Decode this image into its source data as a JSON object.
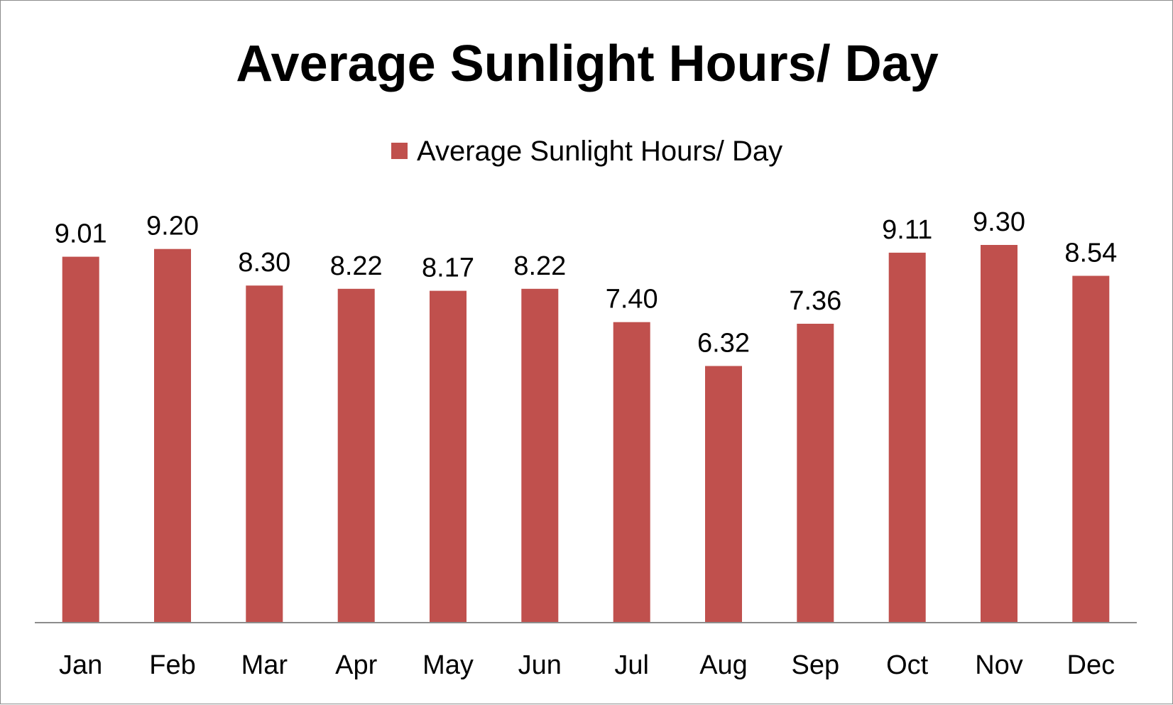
{
  "chart_data": {
    "type": "bar",
    "title": "Average Sunlight Hours/ Day",
    "categories": [
      "Jan",
      "Feb",
      "Mar",
      "Apr",
      "May",
      "Jun",
      "Jul",
      "Aug",
      "Sep",
      "Oct",
      "Nov",
      "Dec"
    ],
    "series": [
      {
        "name": "Average Sunlight Hours/ Day",
        "color": "#c0504d",
        "values": [
          9.01,
          9.2,
          8.3,
          8.22,
          8.17,
          8.22,
          7.4,
          6.32,
          7.36,
          9.11,
          9.3,
          8.54
        ],
        "labels": [
          "9.01",
          "9.20",
          "8.30",
          "8.22",
          "8.17",
          "8.22",
          "7.40",
          "6.32",
          "7.36",
          "9.11",
          "9.30",
          "8.54"
        ]
      }
    ],
    "ylim": [
      0,
      9.3
    ],
    "legend_position": "top",
    "grid": false
  }
}
